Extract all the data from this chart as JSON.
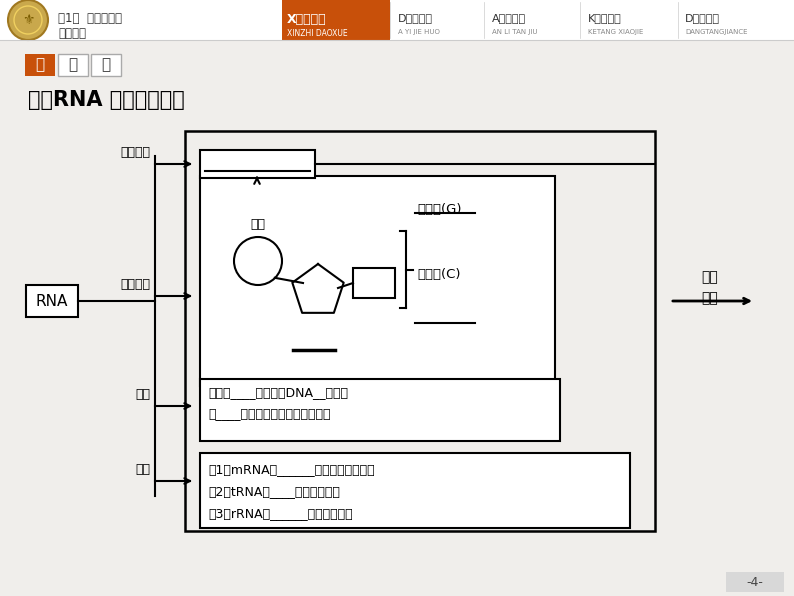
{
  "bg_color": "#f0eeeb",
  "white": "#ffffff",
  "black": "#000000",
  "orange": "#c8500a",
  "dark_gray": "#333333",
  "title": "一、RNA 的组成及分类",
  "tab1": "一",
  "tab2": "二",
  "tab3": "三",
  "header_title": "第1节  基因指导蛋\n质的合成",
  "rna_label": "RNA",
  "label_jibendan": "基本单位",
  "label_zucheng": "组成成分",
  "label_jiegou": "结构",
  "label_zhonglei": "种类",
  "label_linsuang": "磷酸",
  "label_niao": "鸟嘌呤(G)",
  "label_bao": "胞嘧啶(C)",
  "label_siko": "思考\n识图",
  "text_jiegou": "一般是____，而且比DNA__，能通\n过____从细胞核转移到细胞质中。",
  "text_zhonglei1": "（1）mRNA：______合成的直接模板。",
  "text_zhonglei2": "（2）tRNA：____运载氨基酸。",
  "text_zhonglei3": "（3）rRNA：______的组成成分。",
  "page_num": "-4-"
}
